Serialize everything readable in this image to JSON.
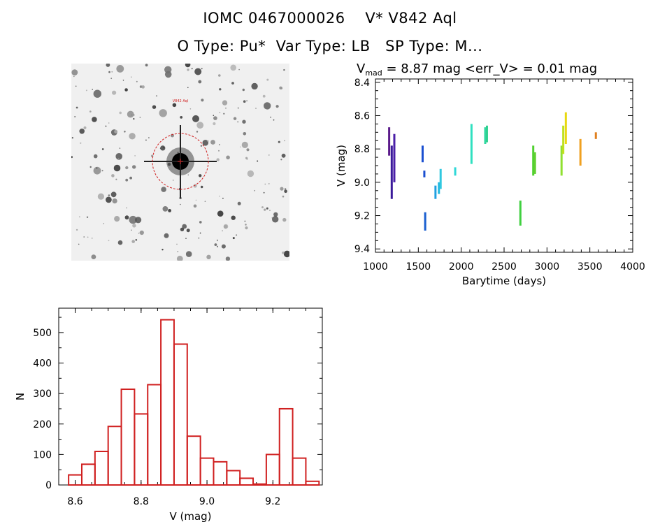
{
  "header": {
    "line1": "IOMC 0467000026    V* V842 Aql",
    "line2": "O Type: Pu*  Var Type: LB   SP Type: M..."
  },
  "image_panel": {
    "target_label": "V842 Aql"
  },
  "chart_data": [
    {
      "type": "scatter",
      "title_prefix": "V",
      "title_sub": "mad",
      "title_rest": " = 8.87 mag <err_V> = 0.01 mag",
      "xlabel": "Barytime (days)",
      "ylabel": "V (mag)",
      "xlim": [
        1000,
        4000
      ],
      "ylim": [
        9.42,
        8.38
      ],
      "y_inverted": true,
      "xticks": [
        1000,
        1500,
        2000,
        2500,
        3000,
        3500,
        4000
      ],
      "yticks": [
        "8.4",
        "8.6",
        "8.8",
        "9.0",
        "9.2",
        "9.4"
      ],
      "segments": [
        {
          "x": 1160,
          "y1": 8.67,
          "y2": 8.84,
          "color": "#5a1a8a"
        },
        {
          "x": 1190,
          "y1": 8.78,
          "y2": 9.1,
          "color": "#3a1a9a"
        },
        {
          "x": 1220,
          "y1": 8.71,
          "y2": 9.0,
          "color": "#4b1fa8"
        },
        {
          "x": 1550,
          "y1": 8.78,
          "y2": 8.88,
          "color": "#1a4fd0"
        },
        {
          "x": 1570,
          "y1": 8.93,
          "y2": 8.97,
          "color": "#1a4fd0"
        },
        {
          "x": 1580,
          "y1": 9.18,
          "y2": 9.29,
          "color": "#1a60d0"
        },
        {
          "x": 1700,
          "y1": 9.02,
          "y2": 9.1,
          "color": "#20a0e0"
        },
        {
          "x": 1740,
          "y1": 9.0,
          "y2": 9.07,
          "color": "#20b8e0"
        },
        {
          "x": 1760,
          "y1": 8.92,
          "y2": 9.04,
          "color": "#30c8e0"
        },
        {
          "x": 1930,
          "y1": 8.91,
          "y2": 8.96,
          "color": "#30d8d8"
        },
        {
          "x": 2120,
          "y1": 8.65,
          "y2": 8.89,
          "color": "#30e0c0"
        },
        {
          "x": 2280,
          "y1": 8.67,
          "y2": 8.77,
          "color": "#30d8a0"
        },
        {
          "x": 2300,
          "y1": 8.66,
          "y2": 8.76,
          "color": "#30d090"
        },
        {
          "x": 2690,
          "y1": 9.11,
          "y2": 9.26,
          "color": "#40d040"
        },
        {
          "x": 2840,
          "y1": 8.78,
          "y2": 8.96,
          "color": "#50d030"
        },
        {
          "x": 2860,
          "y1": 8.82,
          "y2": 8.95,
          "color": "#60d030"
        },
        {
          "x": 3170,
          "y1": 8.78,
          "y2": 8.96,
          "color": "#90e030"
        },
        {
          "x": 3190,
          "y1": 8.66,
          "y2": 8.83,
          "color": "#c0e020"
        },
        {
          "x": 3220,
          "y1": 8.58,
          "y2": 8.77,
          "color": "#e8d810"
        },
        {
          "x": 3390,
          "y1": 8.74,
          "y2": 8.9,
          "color": "#f0a020"
        },
        {
          "x": 3570,
          "y1": 8.7,
          "y2": 8.74,
          "color": "#e08020"
        }
      ]
    },
    {
      "type": "bar",
      "xlabel": "V (mag)",
      "ylabel": "N",
      "xlim": [
        8.55,
        9.35
      ],
      "ylim": [
        0,
        580
      ],
      "xticks": [
        "8.6",
        "8.8",
        "9.0",
        "9.2"
      ],
      "yticks": [
        "0",
        "100",
        "200",
        "300",
        "400",
        "500"
      ],
      "bin_width": 0.04,
      "bin_starts": [
        8.58,
        8.62,
        8.66,
        8.7,
        8.74,
        8.78,
        8.82,
        8.86,
        8.9,
        8.94,
        8.98,
        9.02,
        9.06,
        9.1,
        9.14,
        9.18,
        9.22,
        9.26
      ],
      "values": [
        33,
        68,
        110,
        192,
        314,
        233,
        329,
        542,
        462,
        160,
        88,
        76,
        47,
        22,
        3,
        100,
        250,
        88
      ],
      "extra_bin": {
        "start": 9.3,
        "value": 12
      },
      "color": "#d02020"
    }
  ]
}
